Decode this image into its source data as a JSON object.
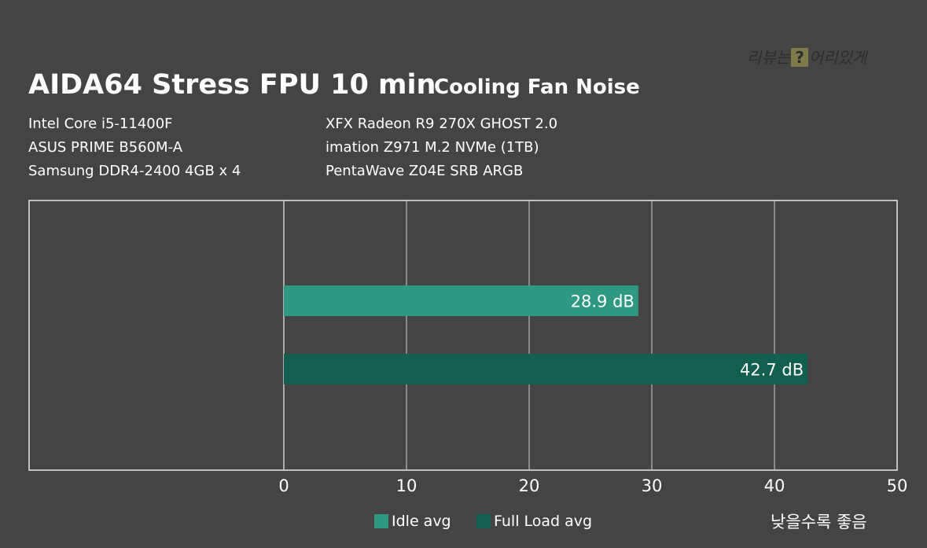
{
  "title": "AIDA64 Stress FPU 10 min",
  "subtitle": "Cooling Fan Noise",
  "specs_left": [
    "Intel Core i5-11400F",
    "ASUS PRIME B560M-A",
    "Samsung DDR4-2400 4GB x 4"
  ],
  "specs_right": [
    "XFX Radeon R9 270X GHOST 2.0",
    "imation Z971 M.2 NVMe (1TB)",
    "PentaWave Z04E SRB ARGB"
  ],
  "watermark": {
    "before": "리뷰는",
    "mark": "?",
    "after": "어리있게"
  },
  "note": "낮을수록 좋음",
  "colors": {
    "idle": "#2e9980",
    "load": "#125e4f",
    "background": "#444444",
    "grid": "#d0d0d0"
  },
  "chart_data": {
    "type": "bar",
    "orientation": "horizontal",
    "xlim": [
      0,
      50
    ],
    "ticks": [
      0,
      10,
      20,
      30,
      40,
      50
    ],
    "grid": true,
    "legend_position": "bottom",
    "series": [
      {
        "name": "Idle avg",
        "value": 28.9,
        "label": "28.9 dB",
        "color": "#2e9980"
      },
      {
        "name": "Full Load avg",
        "value": 42.7,
        "label": "42.7 dB",
        "color": "#125e4f"
      }
    ]
  }
}
